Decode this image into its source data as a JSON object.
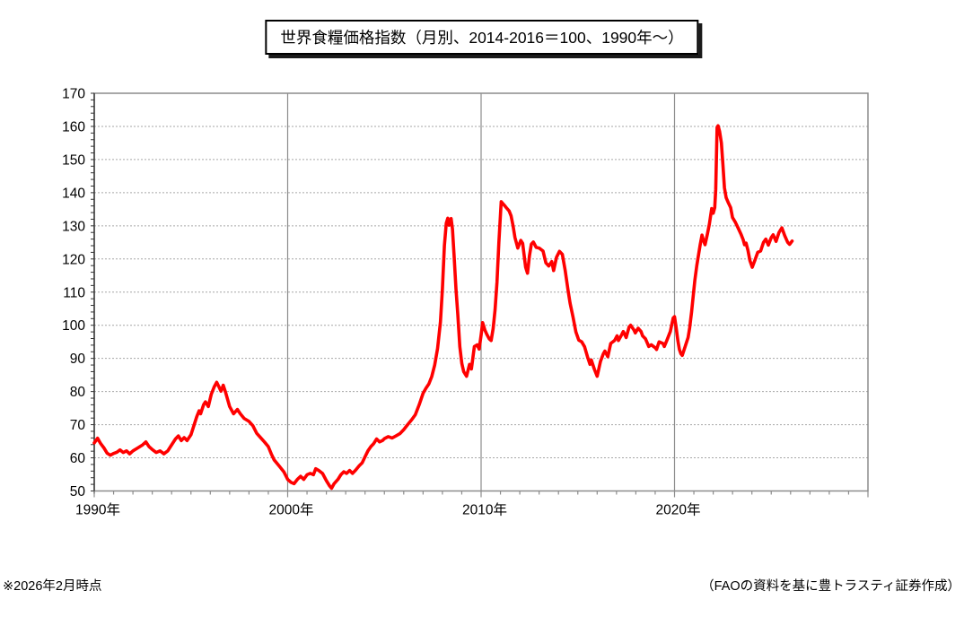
{
  "title": "世界食糧価格指数（月別、2014-2016＝100、1990年～）",
  "footer": {
    "note": "※2026年2月時点",
    "source": "（FAOの資料を基に豊トラスティ証券作成）"
  },
  "colors": {
    "line": "#FF0000",
    "grid_dotted": "#A6A6A6",
    "grid_solid": "#8C8C8C",
    "frame": "#8C8C8C",
    "axis_dark": "#333333",
    "label": "#000000",
    "rule_gold": "#D8B500",
    "rule_navy": "#1F3864"
  },
  "chart_data": {
    "type": "line",
    "title": "世界食糧価格指数（月別、2014-2016＝100、1990年～）",
    "xlabel": "",
    "ylabel": "",
    "x_range": [
      1990,
      2030
    ],
    "y_range": [
      50,
      170
    ],
    "x_ticks": [
      1990,
      2000,
      2010,
      2020
    ],
    "x_tick_suffix": "年",
    "x_minor_step": 1,
    "y_ticks": [
      50,
      60,
      70,
      80,
      90,
      100,
      110,
      120,
      130,
      140,
      150,
      160,
      170
    ],
    "y_minor_step": 2,
    "grid": {
      "horizontal": "dotted",
      "vertical_at": [
        2000,
        2010,
        2020
      ]
    },
    "legend": "none",
    "series": [
      {
        "name": "世界食糧価格指数",
        "color": "#FF0000",
        "points": [
          [
            1990.0,
            64.5
          ],
          [
            1990.17,
            65.9
          ],
          [
            1990.33,
            64.3
          ],
          [
            1990.5,
            63.0
          ],
          [
            1990.67,
            61.4
          ],
          [
            1990.83,
            60.8
          ],
          [
            1991.0,
            61.3
          ],
          [
            1991.17,
            61.7
          ],
          [
            1991.33,
            62.4
          ],
          [
            1991.5,
            61.6
          ],
          [
            1991.67,
            62.1
          ],
          [
            1991.83,
            61.2
          ],
          [
            1992.0,
            62.1
          ],
          [
            1992.25,
            63.0
          ],
          [
            1992.5,
            63.9
          ],
          [
            1992.67,
            64.8
          ],
          [
            1992.83,
            63.4
          ],
          [
            1993.0,
            62.5
          ],
          [
            1993.2,
            61.6
          ],
          [
            1993.4,
            62.1
          ],
          [
            1993.6,
            61.2
          ],
          [
            1993.8,
            62.1
          ],
          [
            1994.0,
            63.9
          ],
          [
            1994.2,
            65.7
          ],
          [
            1994.35,
            66.6
          ],
          [
            1994.5,
            65.2
          ],
          [
            1994.65,
            66.1
          ],
          [
            1994.8,
            65.2
          ],
          [
            1995.0,
            67.0
          ],
          [
            1995.15,
            69.7
          ],
          [
            1995.3,
            72.4
          ],
          [
            1995.42,
            74.2
          ],
          [
            1995.5,
            73.3
          ],
          [
            1995.65,
            76.0
          ],
          [
            1995.75,
            76.9
          ],
          [
            1995.9,
            75.5
          ],
          [
            1996.05,
            79.2
          ],
          [
            1996.2,
            81.4
          ],
          [
            1996.33,
            82.8
          ],
          [
            1996.45,
            81.4
          ],
          [
            1996.55,
            80.1
          ],
          [
            1996.67,
            81.9
          ],
          [
            1996.8,
            79.6
          ],
          [
            1997.0,
            75.5
          ],
          [
            1997.2,
            73.3
          ],
          [
            1997.4,
            74.6
          ],
          [
            1997.55,
            73.3
          ],
          [
            1997.75,
            71.9
          ],
          [
            1998.0,
            71.0
          ],
          [
            1998.2,
            69.7
          ],
          [
            1998.4,
            67.4
          ],
          [
            1998.6,
            66.1
          ],
          [
            1998.8,
            64.8
          ],
          [
            1999.0,
            63.4
          ],
          [
            1999.15,
            61.2
          ],
          [
            1999.3,
            59.4
          ],
          [
            1999.55,
            57.6
          ],
          [
            1999.8,
            55.8
          ],
          [
            2000.0,
            53.5
          ],
          [
            2000.17,
            52.6
          ],
          [
            2000.33,
            52.2
          ],
          [
            2000.5,
            53.5
          ],
          [
            2000.67,
            54.4
          ],
          [
            2000.83,
            53.5
          ],
          [
            2001.0,
            54.9
          ],
          [
            2001.17,
            55.3
          ],
          [
            2001.33,
            54.9
          ],
          [
            2001.45,
            56.7
          ],
          [
            2001.6,
            56.2
          ],
          [
            2001.8,
            55.3
          ],
          [
            2002.0,
            53.1
          ],
          [
            2002.17,
            51.5
          ],
          [
            2002.27,
            50.8
          ],
          [
            2002.4,
            52.2
          ],
          [
            2002.6,
            53.5
          ],
          [
            2002.75,
            54.9
          ],
          [
            2002.9,
            55.8
          ],
          [
            2003.05,
            55.3
          ],
          [
            2003.2,
            56.2
          ],
          [
            2003.35,
            55.3
          ],
          [
            2003.5,
            56.2
          ],
          [
            2003.7,
            57.6
          ],
          [
            2003.85,
            58.5
          ],
          [
            2004.0,
            60.3
          ],
          [
            2004.15,
            62.1
          ],
          [
            2004.3,
            63.4
          ],
          [
            2004.45,
            64.3
          ],
          [
            2004.6,
            65.7
          ],
          [
            2004.75,
            64.8
          ],
          [
            2004.9,
            65.2
          ],
          [
            2005.0,
            65.8
          ],
          [
            2005.2,
            66.4
          ],
          [
            2005.4,
            66.0
          ],
          [
            2005.6,
            66.6
          ],
          [
            2005.8,
            67.3
          ],
          [
            2006.0,
            68.5
          ],
          [
            2006.2,
            70.0
          ],
          [
            2006.4,
            71.4
          ],
          [
            2006.6,
            73.0
          ],
          [
            2006.8,
            76.0
          ],
          [
            2007.0,
            79.5
          ],
          [
            2007.15,
            81.0
          ],
          [
            2007.3,
            82.3
          ],
          [
            2007.45,
            84.5
          ],
          [
            2007.6,
            88.0
          ],
          [
            2007.75,
            93.0
          ],
          [
            2007.9,
            101.0
          ],
          [
            2008.0,
            111.0
          ],
          [
            2008.1,
            124.0
          ],
          [
            2008.2,
            130.8
          ],
          [
            2008.28,
            132.3
          ],
          [
            2008.35,
            130.2
          ],
          [
            2008.45,
            132.2
          ],
          [
            2008.52,
            129.0
          ],
          [
            2008.6,
            121.5
          ],
          [
            2008.7,
            111.0
          ],
          [
            2008.8,
            103.0
          ],
          [
            2008.9,
            93.5
          ],
          [
            2009.0,
            88.5
          ],
          [
            2009.1,
            86.0
          ],
          [
            2009.25,
            84.6
          ],
          [
            2009.4,
            88.2
          ],
          [
            2009.5,
            86.8
          ],
          [
            2009.65,
            93.6
          ],
          [
            2009.8,
            94.1
          ],
          [
            2009.9,
            92.8
          ],
          [
            2010.0,
            97.0
          ],
          [
            2010.08,
            100.8
          ],
          [
            2010.2,
            98.5
          ],
          [
            2010.3,
            97.2
          ],
          [
            2010.42,
            95.9
          ],
          [
            2010.52,
            95.4
          ],
          [
            2010.62,
            99.0
          ],
          [
            2010.72,
            104.5
          ],
          [
            2010.82,
            113.0
          ],
          [
            2010.92,
            125.0
          ],
          [
            2011.04,
            137.3
          ],
          [
            2011.2,
            136.2
          ],
          [
            2011.3,
            135.5
          ],
          [
            2011.45,
            134.5
          ],
          [
            2011.55,
            133.0
          ],
          [
            2011.65,
            130.0
          ],
          [
            2011.75,
            126.5
          ],
          [
            2011.9,
            123.3
          ],
          [
            2012.05,
            125.6
          ],
          [
            2012.15,
            124.7
          ],
          [
            2012.3,
            117.5
          ],
          [
            2012.4,
            115.7
          ],
          [
            2012.5,
            121.0
          ],
          [
            2012.6,
            124.5
          ],
          [
            2012.7,
            125.1
          ],
          [
            2012.85,
            123.5
          ],
          [
            2013.0,
            123.3
          ],
          [
            2013.2,
            122.4
          ],
          [
            2013.35,
            118.8
          ],
          [
            2013.5,
            117.9
          ],
          [
            2013.65,
            119.2
          ],
          [
            2013.75,
            116.5
          ],
          [
            2013.9,
            120.5
          ],
          [
            2014.05,
            122.3
          ],
          [
            2014.2,
            121.4
          ],
          [
            2014.35,
            116.5
          ],
          [
            2014.5,
            110.3
          ],
          [
            2014.6,
            106.7
          ],
          [
            2014.75,
            102.5
          ],
          [
            2014.9,
            98.0
          ],
          [
            2015.05,
            95.5
          ],
          [
            2015.2,
            95.0
          ],
          [
            2015.35,
            93.5
          ],
          [
            2015.5,
            90.5
          ],
          [
            2015.63,
            88.2
          ],
          [
            2015.7,
            89.5
          ],
          [
            2015.85,
            86.8
          ],
          [
            2016.0,
            84.6
          ],
          [
            2016.17,
            89.1
          ],
          [
            2016.32,
            91.4
          ],
          [
            2016.4,
            92.2
          ],
          [
            2016.55,
            90.5
          ],
          [
            2016.7,
            94.5
          ],
          [
            2016.9,
            95.4
          ],
          [
            2017.03,
            96.8
          ],
          [
            2017.1,
            95.4
          ],
          [
            2017.27,
            97.2
          ],
          [
            2017.35,
            98.1
          ],
          [
            2017.5,
            96.3
          ],
          [
            2017.65,
            99.5
          ],
          [
            2017.73,
            100.0
          ],
          [
            2017.9,
            98.6
          ],
          [
            2017.97,
            97.7
          ],
          [
            2018.12,
            99.1
          ],
          [
            2018.27,
            98.1
          ],
          [
            2018.35,
            96.8
          ],
          [
            2018.5,
            95.9
          ],
          [
            2018.67,
            93.6
          ],
          [
            2018.8,
            94.1
          ],
          [
            2019.0,
            93.2
          ],
          [
            2019.07,
            92.7
          ],
          [
            2019.2,
            95.0
          ],
          [
            2019.4,
            94.5
          ],
          [
            2019.47,
            93.6
          ],
          [
            2019.6,
            95.4
          ],
          [
            2019.78,
            98.1
          ],
          [
            2019.93,
            102.2
          ],
          [
            2020.0,
            102.6
          ],
          [
            2020.08,
            99.5
          ],
          [
            2020.17,
            95.4
          ],
          [
            2020.25,
            92.7
          ],
          [
            2020.33,
            91.4
          ],
          [
            2020.4,
            90.9
          ],
          [
            2020.53,
            93.2
          ],
          [
            2020.7,
            96.3
          ],
          [
            2020.78,
            99.1
          ],
          [
            2020.88,
            104.0
          ],
          [
            2020.96,
            108.5
          ],
          [
            2021.05,
            113.5
          ],
          [
            2021.15,
            118.0
          ],
          [
            2021.25,
            121.5
          ],
          [
            2021.33,
            124.5
          ],
          [
            2021.42,
            127.2
          ],
          [
            2021.5,
            125.5
          ],
          [
            2021.58,
            124.3
          ],
          [
            2021.7,
            127.5
          ],
          [
            2021.8,
            130.5
          ],
          [
            2021.92,
            135.2
          ],
          [
            2022.0,
            133.8
          ],
          [
            2022.08,
            135.5
          ],
          [
            2022.13,
            141.0
          ],
          [
            2022.2,
            159.6
          ],
          [
            2022.25,
            160.2
          ],
          [
            2022.33,
            158.5
          ],
          [
            2022.42,
            155.0
          ],
          [
            2022.5,
            148.5
          ],
          [
            2022.58,
            141.5
          ],
          [
            2022.67,
            138.5
          ],
          [
            2022.78,
            137.0
          ],
          [
            2022.9,
            135.5
          ],
          [
            2023.0,
            132.5
          ],
          [
            2023.15,
            131.0
          ],
          [
            2023.3,
            129.2
          ],
          [
            2023.45,
            127.3
          ],
          [
            2023.55,
            125.8
          ],
          [
            2023.62,
            124.3
          ],
          [
            2023.7,
            124.8
          ],
          [
            2023.8,
            122.5
          ],
          [
            2023.9,
            119.5
          ],
          [
            2024.02,
            117.5
          ],
          [
            2024.15,
            119.5
          ],
          [
            2024.3,
            122.0
          ],
          [
            2024.45,
            122.4
          ],
          [
            2024.6,
            125.0
          ],
          [
            2024.72,
            126.0
          ],
          [
            2024.85,
            124.2
          ],
          [
            2025.0,
            126.5
          ],
          [
            2025.1,
            127.3
          ],
          [
            2025.25,
            125.3
          ],
          [
            2025.4,
            128.0
          ],
          [
            2025.55,
            129.4
          ],
          [
            2025.7,
            127.0
          ],
          [
            2025.85,
            125.0
          ],
          [
            2025.95,
            124.4
          ],
          [
            2026.08,
            125.4
          ]
        ]
      }
    ]
  }
}
